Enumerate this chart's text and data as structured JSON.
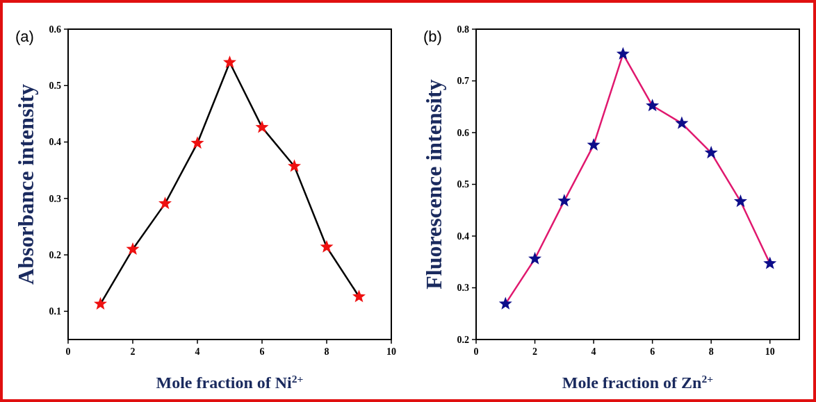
{
  "chart_data": [
    {
      "type": "line",
      "title": "(a)",
      "xlabel": "Mole fraction of Ni$^{2+}$",
      "ylabel": "Absorbance intensity",
      "x": [
        1,
        2,
        3,
        4,
        5,
        6,
        7,
        8,
        9
      ],
      "xlim": [
        0,
        10
      ],
      "xticks": [
        0,
        2,
        4,
        6,
        8,
        10
      ],
      "ylim": [
        0.05,
        0.6
      ],
      "yticks": [
        0.1,
        0.2,
        0.3,
        0.4,
        0.5,
        0.6
      ],
      "line_style": "solid",
      "grid": false,
      "series": [
        {
          "color": "#000000",
          "marker": "none",
          "values": [
            0.113,
            0.21,
            0.291,
            0.398,
            0.541,
            0.426,
            0.357,
            0.214,
            0.126
          ]
        },
        {
          "type": "scatter",
          "color": "#ee1111",
          "marker": "star",
          "values": [
            0.113,
            0.21,
            0.291,
            0.398,
            0.541,
            0.426,
            0.357,
            0.214,
            0.126
          ]
        }
      ]
    },
    {
      "type": "line",
      "title": "(b)",
      "xlabel": "Mole fraction of Zn$^{2+}$",
      "ylabel": "Fluorescence intensity",
      "x": [
        1,
        2,
        3,
        4,
        5,
        6,
        7,
        8,
        9,
        10
      ],
      "xlim": [
        0,
        11
      ],
      "xticks": [
        0,
        2,
        4,
        6,
        8,
        10
      ],
      "ylim": [
        0.2,
        0.8
      ],
      "yticks": [
        0.2,
        0.3,
        0.4,
        0.5,
        0.6,
        0.7,
        0.8
      ],
      "line_style": "solid",
      "grid": false,
      "series": [
        {
          "color": "#e0186e",
          "marker": "none",
          "values": [
            0.269,
            0.356,
            0.468,
            0.576,
            0.752,
            0.652,
            0.618,
            0.561,
            0.467,
            0.347
          ]
        },
        {
          "type": "scatter",
          "color": "#0d0d8a",
          "marker": "star",
          "values": [
            0.269,
            0.356,
            0.468,
            0.576,
            0.752,
            0.652,
            0.618,
            0.561,
            0.467,
            0.347
          ]
        }
      ]
    }
  ]
}
